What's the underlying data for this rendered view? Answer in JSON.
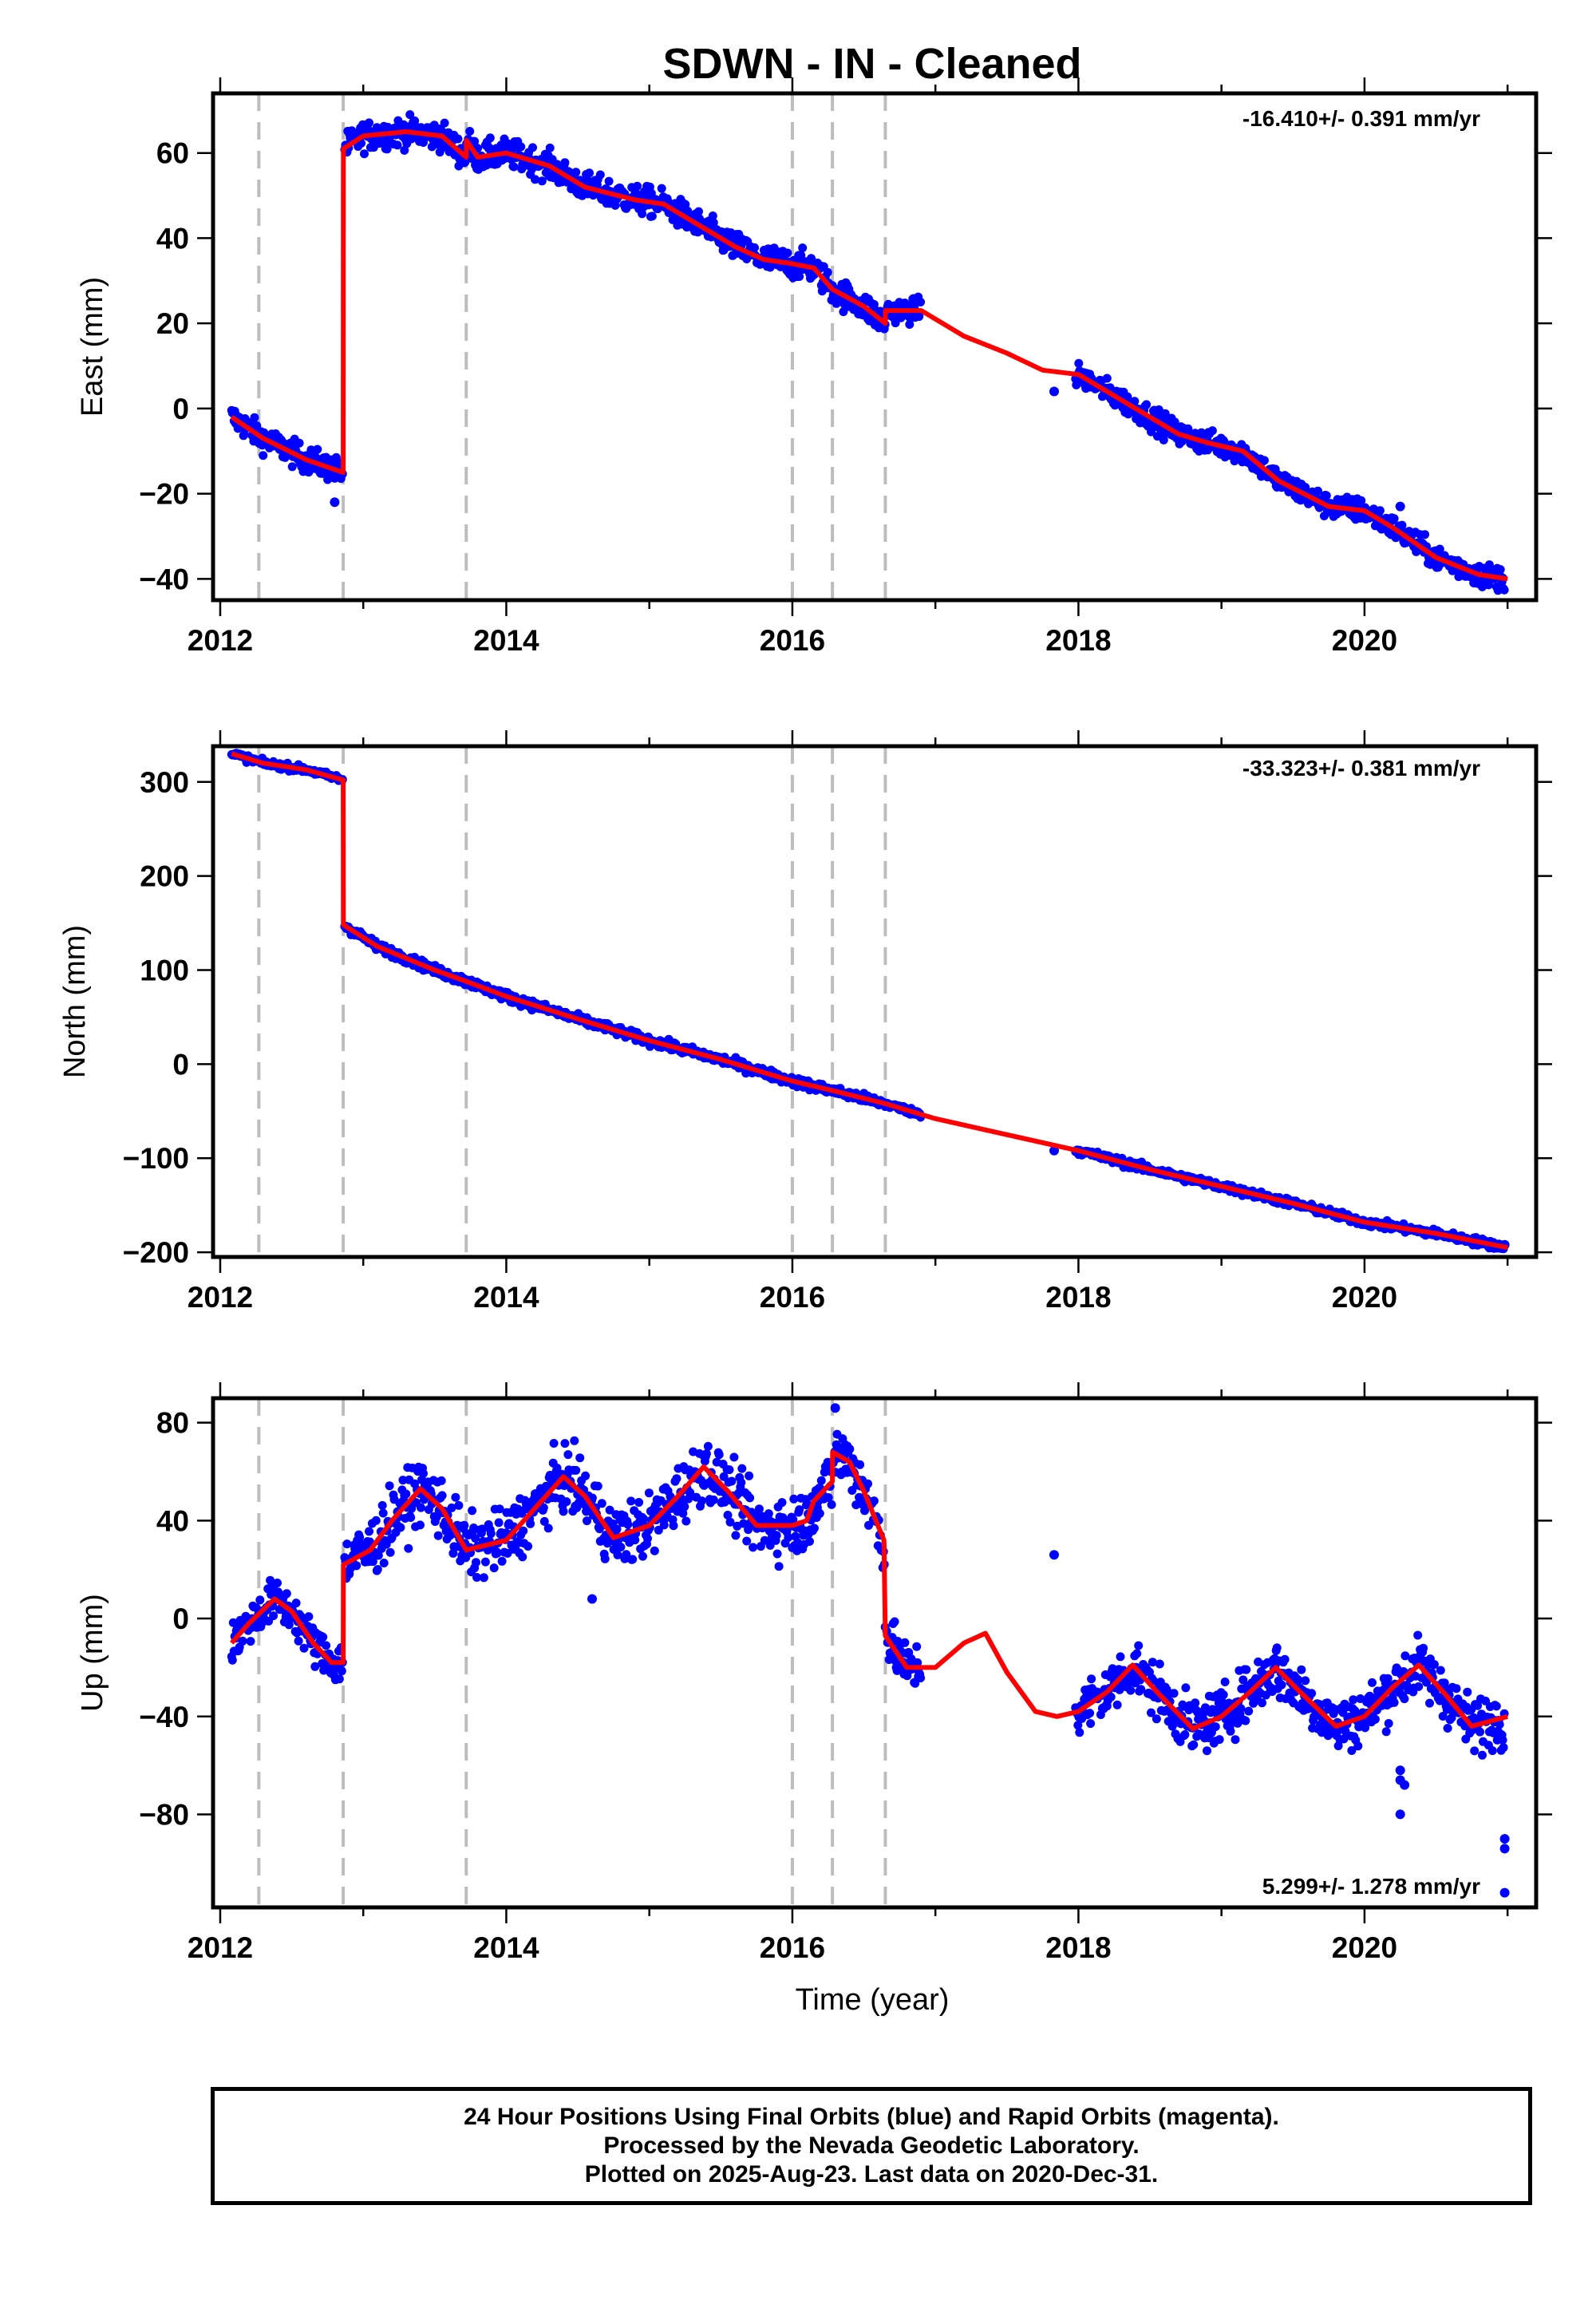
{
  "title": "SDWN  - IN - Cleaned",
  "xlabel": "Time (year)",
  "footer": {
    "line1": "24 Hour Positions Using Final Orbits (blue) and Rapid Orbits (magenta).",
    "line2": "Processed by the Nevada Geodetic Laboratory.",
    "line3": "Plotted on 2025-Aug-23. Last data on 2020-Dec-31."
  },
  "colors": {
    "points": "#0000ff",
    "model": "#ff0000",
    "events": "#bdbdbd"
  },
  "chart_data": [
    {
      "type": "scatter",
      "ylabel": "East (mm)",
      "rate": "-16.410+/- 0.391 mm/yr",
      "xlim": [
        2011.95,
        2021.2
      ],
      "ylim": [
        -45,
        74
      ],
      "xticks": [
        2012,
        2014,
        2016,
        2018,
        2020
      ],
      "yticks": [
        -40,
        -20,
        0,
        20,
        40,
        60
      ],
      "events": [
        2012.27,
        2012.86,
        2013.72,
        2016.0,
        2016.28,
        2016.65
      ],
      "model": [
        [
          2012.08,
          -2
        ],
        [
          2012.3,
          -7
        ],
        [
          2012.6,
          -12
        ],
        [
          2012.86,
          -15
        ],
        [
          2012.861,
          61
        ],
        [
          2013.0,
          64
        ],
        [
          2013.3,
          65
        ],
        [
          2013.55,
          64
        ],
        [
          2013.72,
          59
        ],
        [
          2013.721,
          63
        ],
        [
          2013.8,
          59
        ],
        [
          2014.0,
          60
        ],
        [
          2014.3,
          57
        ],
        [
          2014.55,
          52
        ],
        [
          2014.9,
          49
        ],
        [
          2015.1,
          48
        ],
        [
          2015.35,
          43
        ],
        [
          2015.6,
          38
        ],
        [
          2015.8,
          35
        ],
        [
          2016.0,
          34
        ],
        [
          2016.15,
          33
        ],
        [
          2016.28,
          28
        ],
        [
          2016.5,
          24
        ],
        [
          2016.65,
          20
        ],
        [
          2016.651,
          23
        ],
        [
          2016.9,
          23
        ],
        [
          2017.2,
          17
        ],
        [
          2017.5,
          13
        ],
        [
          2017.75,
          9
        ],
        [
          2018.0,
          8
        ],
        [
          2018.3,
          2
        ],
        [
          2018.7,
          -6
        ],
        [
          2018.9,
          -8
        ],
        [
          2019.15,
          -10
        ],
        [
          2019.4,
          -17
        ],
        [
          2019.75,
          -23
        ],
        [
          2020.0,
          -24
        ],
        [
          2020.2,
          -28
        ],
        [
          2020.5,
          -35
        ],
        [
          2020.8,
          -39
        ],
        [
          2021.0,
          -40
        ]
      ],
      "scatter_segments": [
        {
          "x": [
            2012.08,
            2012.86
          ],
          "spread": 2.2
        },
        {
          "x": [
            2012.87,
            2016.65
          ],
          "spread": 2.4
        },
        {
          "x": [
            2016.66,
            2016.9
          ],
          "spread": 2.0
        },
        {
          "x": [
            2017.98,
            2020.98
          ],
          "spread": 2.0
        }
      ],
      "outliers": [
        [
          2017.83,
          4
        ],
        [
          2012.8,
          -22
        ],
        [
          2020.25,
          -23
        ]
      ]
    },
    {
      "type": "scatter",
      "ylabel": "North (mm)",
      "rate": "-33.323+/- 0.381 mm/yr",
      "xlim": [
        2011.95,
        2021.2
      ],
      "ylim": [
        -205,
        338
      ],
      "xticks": [
        2012,
        2014,
        2016,
        2018,
        2020
      ],
      "yticks": [
        -200,
        -100,
        0,
        100,
        200,
        300
      ],
      "events": [
        2012.27,
        2012.86,
        2013.72,
        2016.0,
        2016.28,
        2016.65
      ],
      "model": [
        [
          2012.08,
          330
        ],
        [
          2012.3,
          320
        ],
        [
          2012.6,
          313
        ],
        [
          2012.86,
          302
        ],
        [
          2012.861,
          148
        ],
        [
          2013.1,
          125
        ],
        [
          2013.5,
          100
        ],
        [
          2013.72,
          88
        ],
        [
          2014.0,
          72
        ],
        [
          2014.5,
          48
        ],
        [
          2015.0,
          25
        ],
        [
          2015.5,
          5
        ],
        [
          2016.0,
          -18
        ],
        [
          2016.28,
          -28
        ],
        [
          2016.65,
          -42
        ],
        [
          2017.0,
          -58
        ],
        [
          2017.5,
          -75
        ],
        [
          2018.0,
          -92
        ],
        [
          2018.5,
          -112
        ],
        [
          2019.0,
          -130
        ],
        [
          2019.5,
          -148
        ],
        [
          2020.0,
          -168
        ],
        [
          2020.5,
          -180
        ],
        [
          2021.0,
          -195
        ]
      ],
      "scatter_segments": [
        {
          "x": [
            2012.08,
            2012.86
          ],
          "spread": 2.5
        },
        {
          "x": [
            2012.87,
            2016.65
          ],
          "spread": 3.5
        },
        {
          "x": [
            2016.66,
            2016.9
          ],
          "spread": 2.5
        },
        {
          "x": [
            2017.98,
            2020.98
          ],
          "spread": 3.0
        }
      ],
      "outliers": [
        [
          2017.83,
          -92
        ],
        [
          2020.98,
          -192
        ]
      ]
    },
    {
      "type": "scatter",
      "ylabel": "Up (mm)",
      "rate": "5.299+/- 1.278 mm/yr",
      "xlim": [
        2011.95,
        2021.2
      ],
      "ylim": [
        -118,
        90
      ],
      "xticks": [
        2012,
        2014,
        2016,
        2018,
        2020
      ],
      "yticks": [
        -80,
        -40,
        0,
        40,
        80
      ],
      "events": [
        2012.27,
        2012.86,
        2013.72,
        2016.0,
        2016.28,
        2016.65
      ],
      "model": [
        [
          2012.08,
          -10
        ],
        [
          2012.2,
          -2
        ],
        [
          2012.38,
          8
        ],
        [
          2012.5,
          3
        ],
        [
          2012.65,
          -10
        ],
        [
          2012.78,
          -18
        ],
        [
          2012.86,
          -18
        ],
        [
          2012.861,
          22
        ],
        [
          2013.05,
          28
        ],
        [
          2013.2,
          40
        ],
        [
          2013.4,
          53
        ],
        [
          2013.55,
          45
        ],
        [
          2013.72,
          28
        ],
        [
          2014.0,
          32
        ],
        [
          2014.2,
          45
        ],
        [
          2014.4,
          58
        ],
        [
          2014.55,
          50
        ],
        [
          2014.75,
          33
        ],
        [
          2015.0,
          38
        ],
        [
          2015.2,
          50
        ],
        [
          2015.38,
          62
        ],
        [
          2015.55,
          52
        ],
        [
          2015.75,
          38
        ],
        [
          2016.0,
          38
        ],
        [
          2016.1,
          40
        ],
        [
          2016.15,
          48
        ],
        [
          2016.28,
          56
        ],
        [
          2016.281,
          68
        ],
        [
          2016.4,
          64
        ],
        [
          2016.5,
          52
        ],
        [
          2016.64,
          32
        ],
        [
          2016.65,
          -7
        ],
        [
          2016.8,
          -20
        ],
        [
          2017.0,
          -20
        ],
        [
          2017.2,
          -10
        ],
        [
          2017.35,
          -6
        ],
        [
          2017.5,
          -22
        ],
        [
          2017.7,
          -38
        ],
        [
          2017.85,
          -40
        ],
        [
          2018.0,
          -38
        ],
        [
          2018.2,
          -30
        ],
        [
          2018.38,
          -19
        ],
        [
          2018.55,
          -30
        ],
        [
          2018.8,
          -45
        ],
        [
          2019.0,
          -40
        ],
        [
          2019.2,
          -30
        ],
        [
          2019.38,
          -20
        ],
        [
          2019.55,
          -30
        ],
        [
          2019.8,
          -44
        ],
        [
          2020.0,
          -40
        ],
        [
          2020.2,
          -28
        ],
        [
          2020.38,
          -19
        ],
        [
          2020.55,
          -30
        ],
        [
          2020.75,
          -44
        ],
        [
          2021.0,
          -40
        ]
      ],
      "scatter_segments": [
        {
          "x": [
            2012.08,
            2012.86
          ],
          "spread": 6
        },
        {
          "x": [
            2012.87,
            2016.65
          ],
          "spread": 9
        },
        {
          "x": [
            2016.66,
            2016.9
          ],
          "spread": 7
        },
        {
          "x": [
            2017.98,
            2020.98
          ],
          "spread": 8
        }
      ],
      "outliers": [
        [
          2017.83,
          26
        ],
        [
          2020.25,
          -62
        ],
        [
          2020.25,
          -66
        ],
        [
          2020.25,
          -80
        ],
        [
          2020.28,
          -68
        ],
        [
          2020.98,
          -90
        ],
        [
          2020.98,
          -94
        ],
        [
          2020.98,
          -112
        ],
        [
          2016.3,
          86
        ],
        [
          2014.6,
          8
        ]
      ]
    }
  ]
}
